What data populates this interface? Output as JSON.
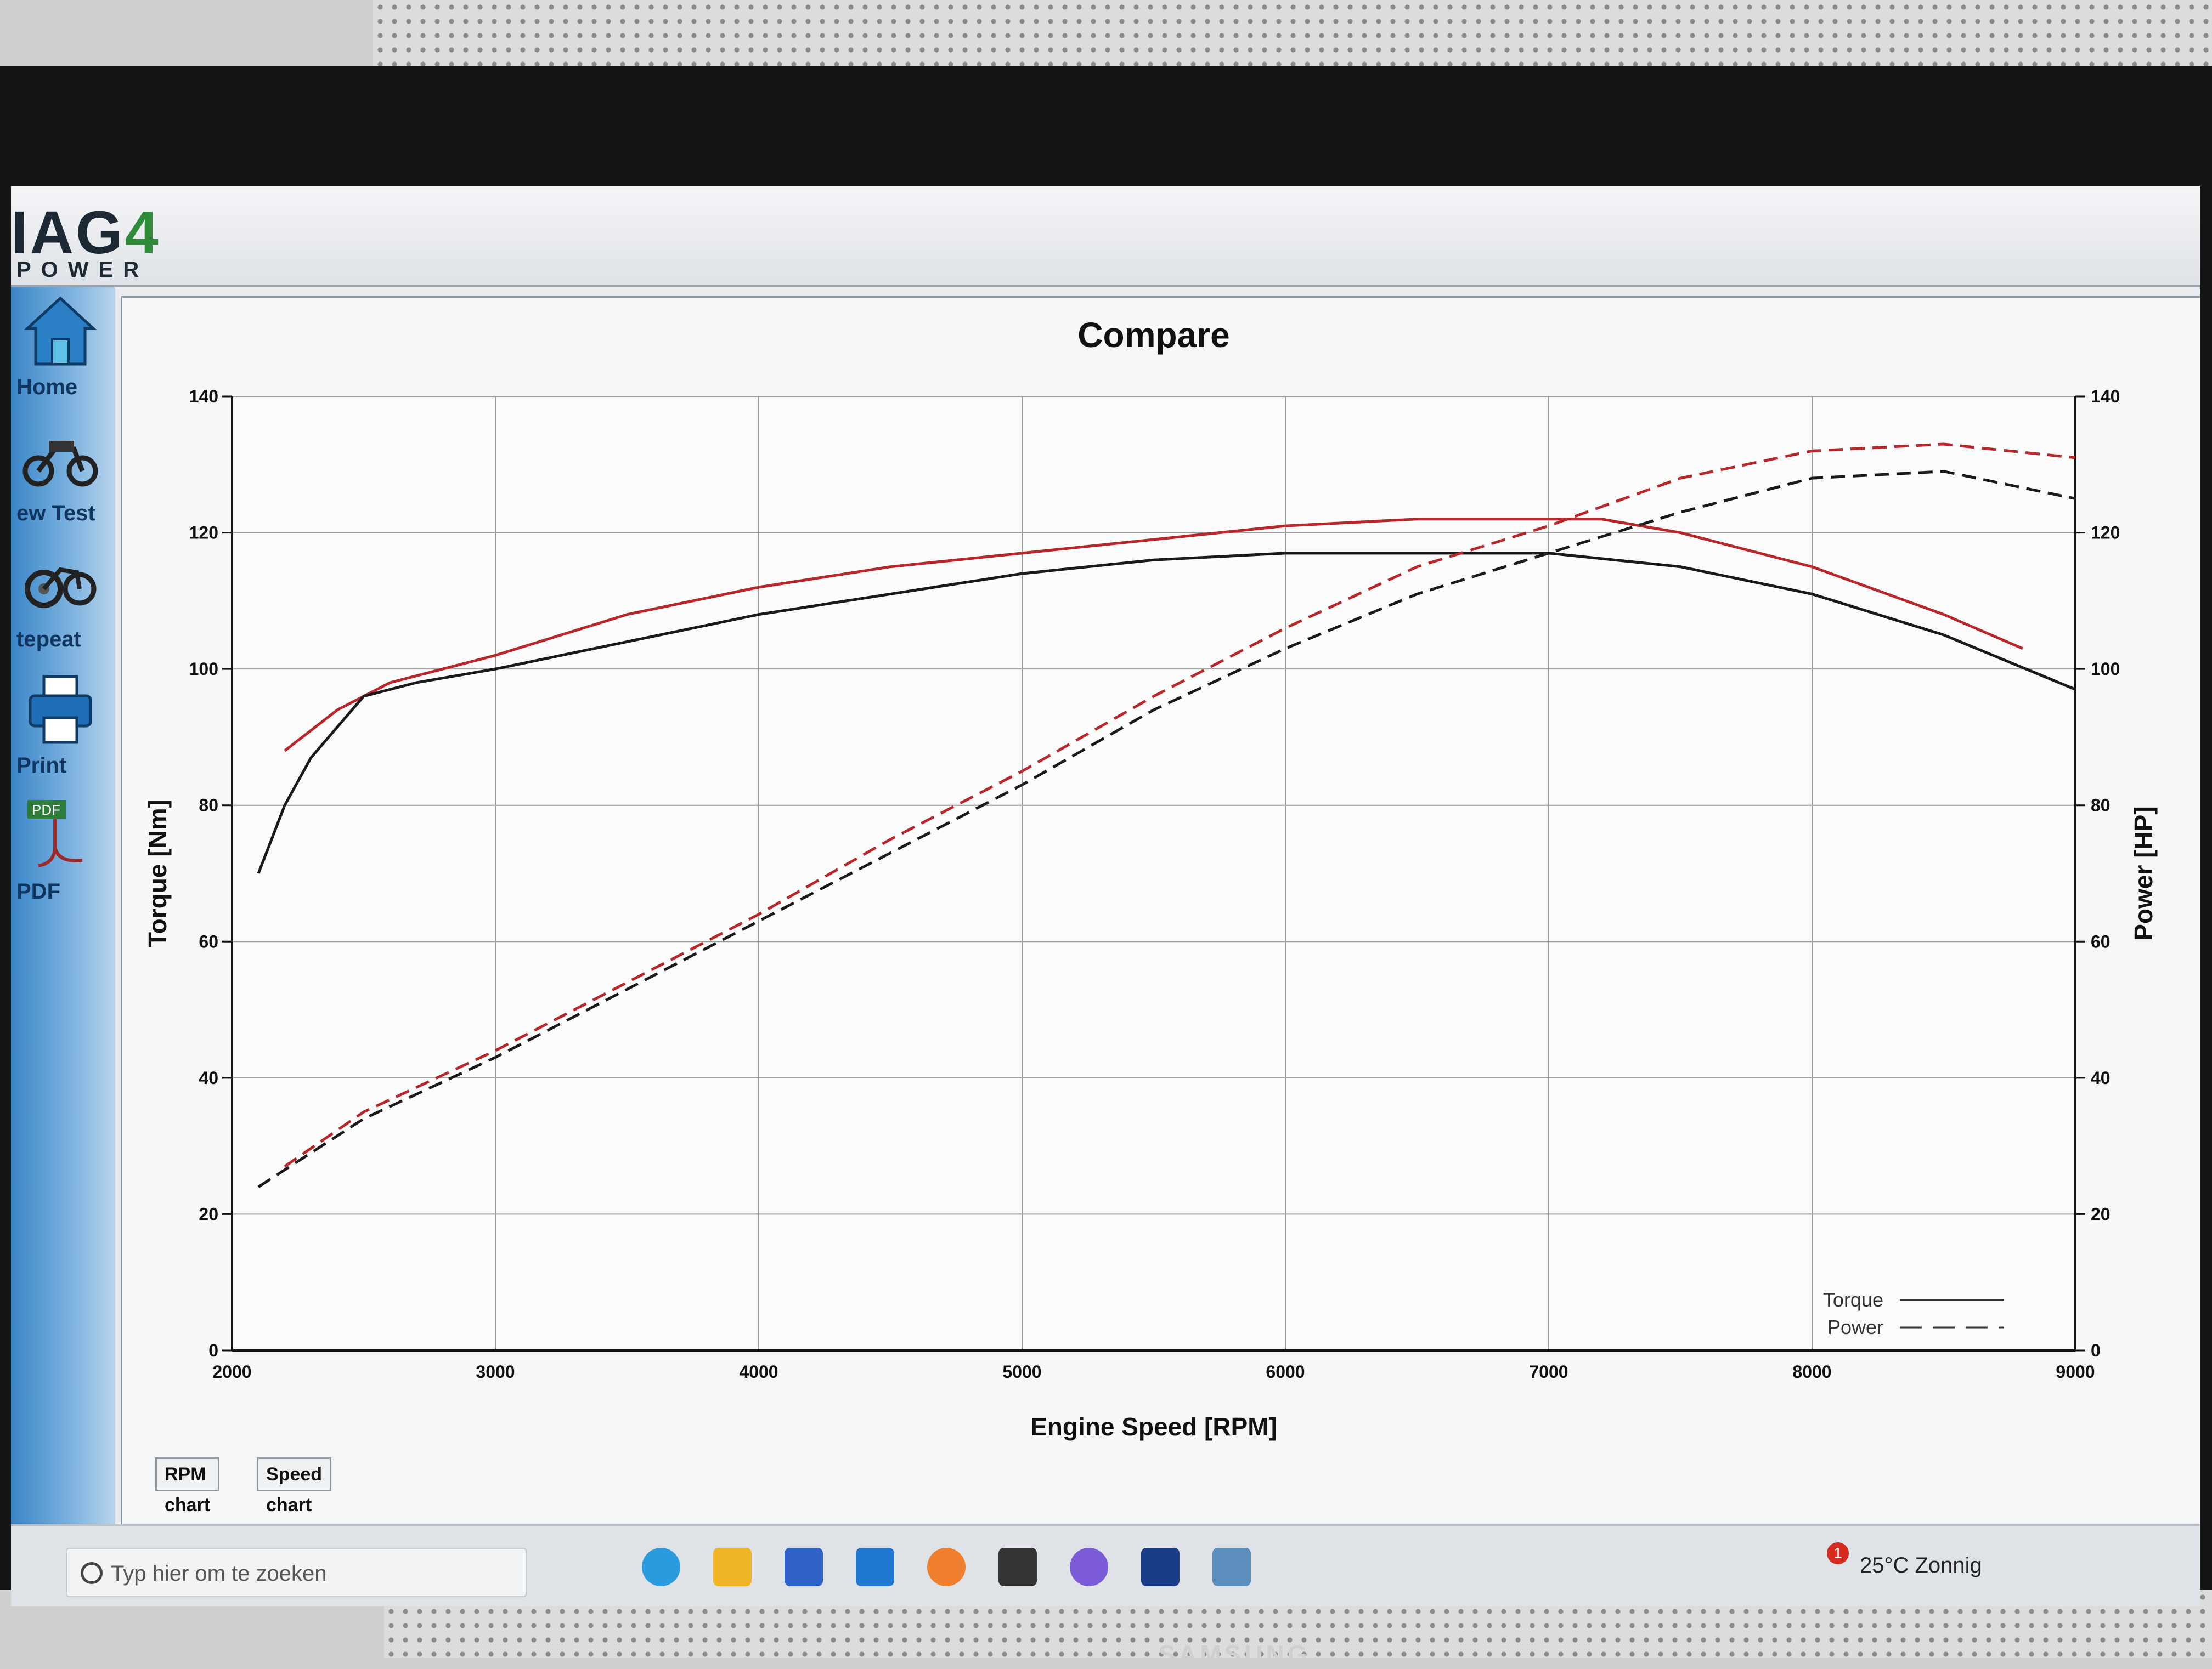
{
  "app": {
    "logo_main_prefix": "IAG",
    "logo_main_suffix": "4",
    "logo_sub": "POWER",
    "brand": "SAMSUNG"
  },
  "sidebar": {
    "items": [
      {
        "label": "Home",
        "icon": "home-icon"
      },
      {
        "label": "ew Test",
        "icon": "motorcycle-icon"
      },
      {
        "label": "tepeat",
        "icon": "repeat-motorcycle-icon"
      },
      {
        "label": "Print",
        "icon": "printer-icon"
      },
      {
        "label": "PDF",
        "icon": "pdf-icon",
        "badge": "PDF"
      }
    ]
  },
  "tabs": [
    {
      "label": "RPM chart",
      "active": true
    },
    {
      "label": "Speed chart",
      "active": false
    }
  ],
  "taskbar": {
    "search_placeholder": "Typ hier om te zoeken",
    "weather": "25°C  Zonnig",
    "notification_count": "1"
  },
  "colors": {
    "run_red": "#b8282a",
    "run_black": "#1a1a1a",
    "grid": "#9a9a9a"
  },
  "chart_data": {
    "type": "line",
    "title": "Compare",
    "xlabel": "Engine Speed [RPM]",
    "ylabel_left": "Torque [Nm]",
    "ylabel_right": "Power [HP]",
    "xlim": [
      2000,
      9000
    ],
    "ylim_left": [
      0,
      140
    ],
    "ylim_right": [
      0,
      140
    ],
    "xticks": [
      2000,
      3000,
      4000,
      5000,
      6000,
      7000,
      8000,
      9000
    ],
    "yticks_left": [
      0,
      20,
      40,
      60,
      80,
      100,
      120,
      140
    ],
    "yticks_right": [
      0,
      20,
      40,
      60,
      80,
      100,
      120,
      140
    ],
    "grid": true,
    "legend": {
      "placement": "bottom-right",
      "entries": [
        {
          "label": "Torque",
          "style": "solid"
        },
        {
          "label": "Power",
          "style": "dashed"
        }
      ]
    },
    "series": [
      {
        "color": "red",
        "kind": "torque",
        "axis": "left",
        "x": [
          2200,
          2400,
          2600,
          2800,
          3000,
          3500,
          4000,
          4500,
          5000,
          5500,
          6000,
          6500,
          7000,
          7200,
          7500,
          8000,
          8500,
          8800
        ],
        "y": [
          88,
          94,
          98,
          100,
          102,
          108,
          112,
          115,
          117,
          119,
          121,
          122,
          122,
          122,
          120,
          115,
          108,
          103
        ]
      },
      {
        "color": "black",
        "kind": "torque",
        "axis": "left",
        "x": [
          2100,
          2200,
          2300,
          2500,
          2700,
          3000,
          3500,
          4000,
          4500,
          5000,
          5500,
          6000,
          6500,
          7000,
          7500,
          8000,
          8500,
          9000
        ],
        "y": [
          70,
          80,
          87,
          96,
          98,
          100,
          104,
          108,
          111,
          114,
          116,
          117,
          117,
          117,
          115,
          111,
          105,
          97
        ]
      },
      {
        "color": "red",
        "kind": "power",
        "axis": "right",
        "x": [
          2200,
          2500,
          3000,
          3500,
          4000,
          4500,
          5000,
          5500,
          6000,
          6500,
          7000,
          7500,
          8000,
          8500,
          9000
        ],
        "y": [
          27,
          35,
          44,
          54,
          64,
          75,
          85,
          96,
          106,
          115,
          121,
          128,
          132,
          133,
          131
        ]
      },
      {
        "color": "black",
        "kind": "power",
        "axis": "right",
        "x": [
          2100,
          2500,
          3000,
          3500,
          4000,
          4500,
          5000,
          5500,
          6000,
          6500,
          7000,
          7500,
          8000,
          8500,
          9000
        ],
        "y": [
          24,
          34,
          43,
          53,
          63,
          73,
          83,
          94,
          103,
          111,
          117,
          123,
          128,
          129,
          125
        ]
      }
    ]
  }
}
